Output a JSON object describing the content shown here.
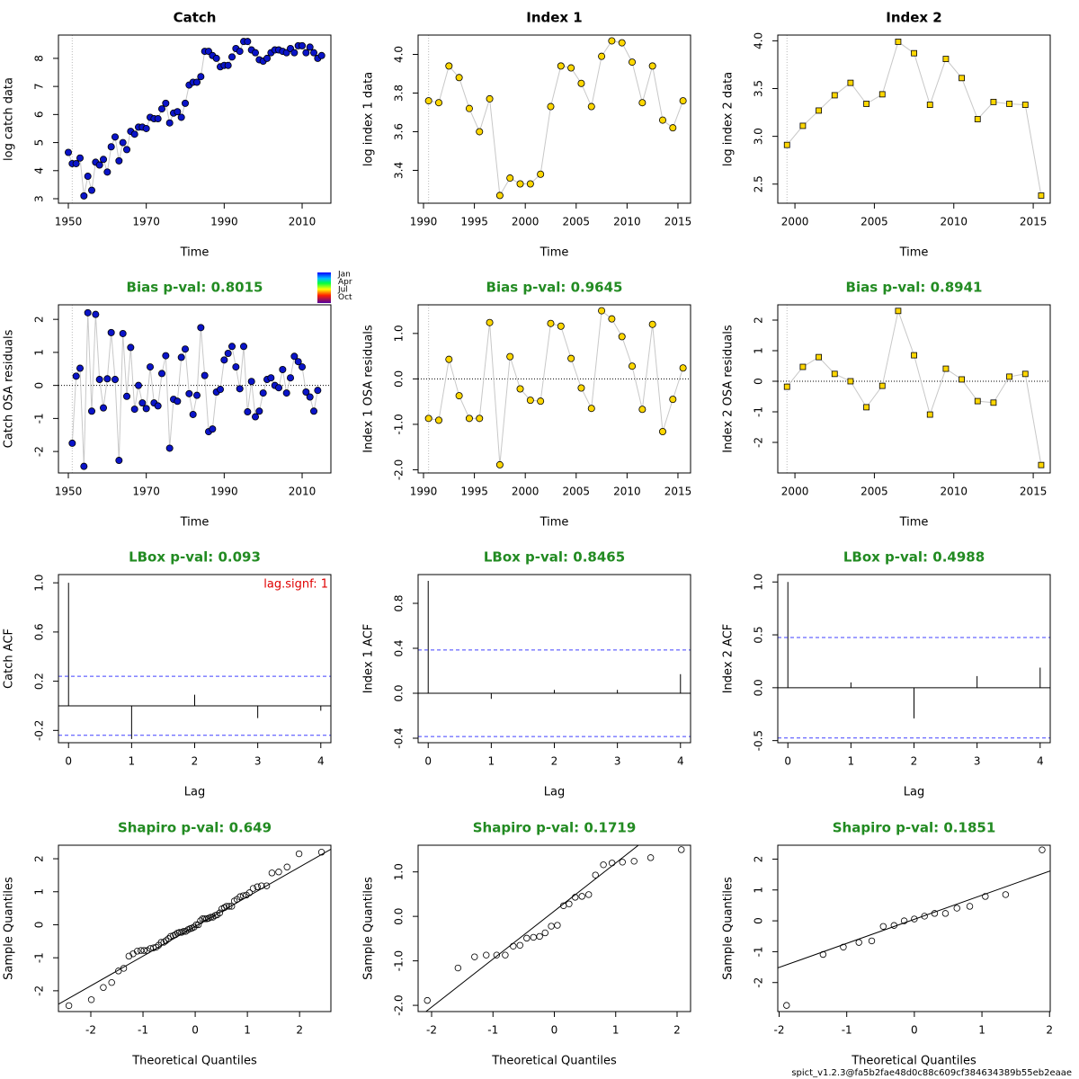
{
  "chart_data": [
    {
      "type": "line",
      "title": "Catch",
      "title_color": "#000000",
      "xlabel": "Time",
      "ylabel": "log catch data",
      "x": [
        1950,
        1951,
        1952,
        1953,
        1954,
        1955,
        1956,
        1957,
        1958,
        1959,
        1960,
        1961,
        1962,
        1963,
        1964,
        1965,
        1966,
        1967,
        1968,
        1969,
        1970,
        1971,
        1972,
        1973,
        1974,
        1975,
        1976,
        1977,
        1978,
        1979,
        1980,
        1981,
        1982,
        1983,
        1984,
        1985,
        1986,
        1987,
        1988,
        1989,
        1990,
        1991,
        1992,
        1993,
        1994,
        1995,
        1996,
        1997,
        1998,
        1999,
        2000,
        2001,
        2002,
        2003,
        2004,
        2005,
        2006,
        2007,
        2008,
        2009,
        2010,
        2011,
        2012,
        2013,
        2014,
        2015
      ],
      "values": [
        4.65,
        4.25,
        4.25,
        4.45,
        3.1,
        3.8,
        3.3,
        4.3,
        4.2,
        4.4,
        3.95,
        4.85,
        5.2,
        4.35,
        5.0,
        4.75,
        5.4,
        5.3,
        5.55,
        5.55,
        5.5,
        5.9,
        5.85,
        5.85,
        6.2,
        6.4,
        5.7,
        6.05,
        6.1,
        5.9,
        6.4,
        7.05,
        7.15,
        7.15,
        7.35,
        8.25,
        8.25,
        8.1,
        8.0,
        7.7,
        7.75,
        7.75,
        8.05,
        8.35,
        8.25,
        8.6,
        8.6,
        8.3,
        8.2,
        7.95,
        7.9,
        8.0,
        8.2,
        8.3,
        8.3,
        8.25,
        8.2,
        8.35,
        8.2,
        8.45,
        8.45,
        8.2,
        8.4,
        8.2,
        8.0,
        8.1
      ],
      "color": "#0a14c8",
      "marker": "circle",
      "vline": 1951,
      "xlim": [
        1947.46,
        2017.38
      ],
      "ylim": [
        2.84,
        8.83
      ],
      "xticks": [
        1950,
        1970,
        1990,
        2010
      ],
      "yticks": [
        3,
        4,
        5,
        6,
        7,
        8
      ]
    },
    {
      "type": "line",
      "title": "Index 1",
      "title_color": "#000000",
      "xlabel": "Time",
      "ylabel": "log index 1 data",
      "x": [
        1990.5,
        1991.5,
        1992.5,
        1993.5,
        1994.5,
        1995.5,
        1996.5,
        1997.5,
        1998.5,
        1999.5,
        2000.5,
        2001.5,
        2002.5,
        2003.5,
        2004.5,
        2005.5,
        2006.5,
        2007.5,
        2008.5,
        2009.5,
        2010.5,
        2011.5,
        2012.5,
        2013.5,
        2014.5,
        2015.5
      ],
      "values": [
        3.76,
        3.75,
        3.94,
        3.88,
        3.72,
        3.6,
        3.77,
        3.27,
        3.36,
        3.33,
        3.33,
        3.38,
        3.73,
        3.94,
        3.93,
        3.85,
        3.73,
        3.99,
        4.07,
        4.06,
        3.96,
        3.75,
        3.94,
        3.66,
        3.62,
        3.76
      ],
      "color": "#ffd700",
      "marker": "circle",
      "vline": 1990.5,
      "xlim": [
        1989.47,
        2016.24
      ],
      "ylim": [
        3.23,
        4.1
      ],
      "xticks": [
        1990,
        1995,
        2000,
        2005,
        2010,
        2015
      ],
      "yticks": [
        3.4,
        3.6,
        3.8,
        {
          "value": 4,
          "label": "4.0"
        }
      ]
    },
    {
      "type": "line",
      "title": "Index 2",
      "title_color": "#000000",
      "xlabel": "Time",
      "ylabel": "log index 2 data",
      "x": [
        1999.5,
        2000.5,
        2001.5,
        2002.5,
        2003.5,
        2004.5,
        2005.5,
        2006.5,
        2007.5,
        2008.5,
        2009.5,
        2010.5,
        2011.5,
        2012.5,
        2013.5,
        2014.5,
        2015.5
      ],
      "values": [
        2.91,
        3.11,
        3.27,
        3.43,
        3.56,
        3.34,
        3.44,
        3.99,
        3.87,
        3.33,
        3.81,
        3.61,
        3.18,
        3.36,
        3.34,
        3.33,
        2.38
      ],
      "color": "#ffd700",
      "marker": "square",
      "vline": 1999.5,
      "xlim": [
        1998.92,
        2016.07
      ],
      "ylim": [
        2.3,
        4.06
      ],
      "xticks": [
        2000,
        2005,
        2010,
        2015
      ],
      "yticks": [
        2.5,
        {
          "value": 3,
          "label": "3.0"
        },
        3.5,
        {
          "value": 4,
          "label": "4.0"
        }
      ]
    },
    {
      "type": "line",
      "title": "Bias p-val: 0.8015",
      "title_color": "#228b22",
      "xlabel": "Time",
      "ylabel": "Catch OSA residuals",
      "x": [
        1951,
        1952,
        1953,
        1954,
        1955,
        1956,
        1957,
        1958,
        1959,
        1960,
        1961,
        1962,
        1963,
        1964,
        1965,
        1966,
        1967,
        1968,
        1969,
        1970,
        1971,
        1972,
        1973,
        1974,
        1975,
        1976,
        1977,
        1978,
        1979,
        1980,
        1981,
        1982,
        1983,
        1984,
        1985,
        1986,
        1987,
        1988,
        1989,
        1990,
        1991,
        1992,
        1993,
        1994,
        1995,
        1996,
        1997,
        1998,
        1999,
        2000,
        2001,
        2002,
        2003,
        2004,
        2005,
        2006,
        2007,
        2008,
        2009,
        2010,
        2011,
        2012,
        2013,
        2014
      ],
      "values": [
        -1.75,
        0.28,
        0.52,
        -2.45,
        2.2,
        -0.78,
        2.15,
        0.18,
        -0.68,
        0.2,
        1.6,
        0.18,
        -2.27,
        1.57,
        -0.33,
        1.15,
        -0.72,
        0,
        -0.53,
        -0.7,
        0.56,
        -0.53,
        -0.62,
        0.36,
        0.9,
        -1.9,
        -0.42,
        -0.48,
        0.85,
        1.1,
        -0.25,
        -0.88,
        -0.3,
        1.75,
        0.3,
        -1.4,
        -1.32,
        -0.2,
        -0.12,
        0.77,
        0.97,
        1.18,
        0.56,
        -0.1,
        1.18,
        -0.8,
        0.12,
        -0.95,
        -0.78,
        -0.23,
        0.18,
        0.23,
        0,
        -0.07,
        0.48,
        -0.23,
        0.23,
        0.88,
        0.72,
        0.56,
        -0.2,
        -0.35,
        -0.78,
        -0.15
      ],
      "color": "#0a14c8",
      "marker": "circle",
      "vline": 1951,
      "hline": 0,
      "season_labels": [
        "Jan",
        "Apr",
        "Jul",
        "Oct"
      ],
      "xlim": [
        1947.46,
        2017.38
      ],
      "ylim": [
        -2.65,
        2.44
      ],
      "xticks": [
        1950,
        1970,
        1990,
        2010
      ],
      "yticks": [
        -2,
        -1,
        0,
        1,
        2
      ]
    },
    {
      "type": "line",
      "title": "Bias p-val: 0.9645",
      "title_color": "#228b22",
      "xlabel": "Time",
      "ylabel": "Index 1 OSA residuals",
      "x": [
        1990.5,
        1991.5,
        1992.5,
        1993.5,
        1994.5,
        1995.5,
        1996.5,
        1997.5,
        1998.5,
        1999.5,
        2000.5,
        2001.5,
        2002.5,
        2003.5,
        2004.5,
        2005.5,
        2006.5,
        2007.5,
        2008.5,
        2009.5,
        2010.5,
        2011.5,
        2012.5,
        2013.5,
        2014.5,
        2015.5
      ],
      "values": [
        -0.87,
        -0.91,
        0.43,
        -0.37,
        -0.87,
        -0.87,
        1.24,
        -1.89,
        0.49,
        -0.22,
        -0.47,
        -0.49,
        1.22,
        1.16,
        0.45,
        -0.2,
        -0.65,
        1.5,
        1.32,
        0.93,
        0.28,
        -0.67,
        1.2,
        -1.16,
        -0.45,
        0.24
      ],
      "color": "#ffd700",
      "marker": "circle",
      "vline": 1990.5,
      "hline": 0,
      "xlim": [
        1989.47,
        2016.24
      ],
      "ylim": [
        -2.07,
        1.63
      ],
      "xticks": [
        1990,
        1995,
        2000,
        2005,
        2010,
        2015
      ],
      "yticks": [
        {
          "value": -2,
          "label": "-2.0"
        },
        {
          "value": -1,
          "label": "-1.0"
        },
        {
          "value": 0,
          "label": "0.0"
        },
        {
          "value": 1,
          "label": "1.0"
        }
      ]
    },
    {
      "type": "line",
      "title": "Bias p-val: 0.8941",
      "title_color": "#228b22",
      "xlabel": "Time",
      "ylabel": "Index 2 OSA residuals",
      "x": [
        1999.5,
        2000.5,
        2001.5,
        2002.5,
        2003.5,
        2004.5,
        2005.5,
        2006.5,
        2007.5,
        2008.5,
        2009.5,
        2010.5,
        2011.5,
        2012.5,
        2013.5,
        2014.5,
        2015.5
      ],
      "values": [
        -0.18,
        0.47,
        0.79,
        0.24,
        0,
        -0.85,
        -0.15,
        2.3,
        0.85,
        -1.09,
        0.41,
        0.06,
        -0.65,
        -0.7,
        0.15,
        0.24,
        -2.74
      ],
      "color": "#ffd700",
      "marker": "square",
      "vline": 1999.5,
      "hline": 0,
      "xlim": [
        1998.92,
        2016.07
      ],
      "ylim": [
        -3.0,
        2.5
      ],
      "xticks": [
        2000,
        2005,
        2010,
        2015
      ],
      "yticks": [
        -2,
        -1,
        0,
        1,
        2
      ]
    },
    {
      "type": "bar",
      "title": "LBox p-val: 0.093",
      "title_color": "#228b22",
      "xlabel": "Lag",
      "ylabel": "Catch ACF",
      "annotation": "lag.signf: 1",
      "annotation_color": "#e00000",
      "x": [
        0,
        1,
        2,
        3,
        4
      ],
      "values": [
        1,
        -0.27,
        0.09,
        -0.1,
        -0.04
      ],
      "hline": 0,
      "conf": [
        -0.24,
        0.24
      ],
      "conf_color": "#4040ff",
      "xlim": [
        -0.16,
        4.16
      ],
      "ylim": [
        -0.3,
        1.067
      ],
      "xticks": [
        0,
        1,
        2,
        3,
        4
      ],
      "yticks": [
        -0.2,
        0.2,
        0.6,
        {
          "value": 1,
          "label": "1.0"
        }
      ]
    },
    {
      "type": "bar",
      "title": "LBox p-val: 0.8465",
      "title_color": "#228b22",
      "xlabel": "Lag",
      "ylabel": "Index 1 ACF",
      "x": [
        0,
        1,
        2,
        3,
        4
      ],
      "values": [
        1,
        -0.05,
        0.03,
        0.03,
        0.17
      ],
      "hline": 0,
      "conf": [
        -0.385,
        0.385
      ],
      "conf_color": "#4040ff",
      "xlim": [
        -0.16,
        4.16
      ],
      "ylim": [
        -0.44,
        1.056
      ],
      "xticks": [
        0,
        1,
        2,
        3,
        4
      ],
      "yticks": [
        -0.4,
        {
          "value": 0,
          "label": "0.0"
        },
        0.4,
        0.8
      ]
    },
    {
      "type": "bar",
      "title": "LBox p-val: 0.4988",
      "title_color": "#228b22",
      "xlabel": "Lag",
      "ylabel": "Index 2 ACF",
      "x": [
        0,
        1,
        2,
        3,
        4
      ],
      "values": [
        1,
        0.05,
        -0.29,
        0.11,
        0.19
      ],
      "hline": 0,
      "conf": [
        -0.475,
        0.475
      ],
      "conf_color": "#4040ff",
      "xlim": [
        -0.16,
        4.16
      ],
      "ylim": [
        -0.52,
        1.07
      ],
      "xticks": [
        0,
        1,
        2,
        3,
        4
      ],
      "yticks": [
        -0.5,
        {
          "value": 0,
          "label": "0.0"
        },
        0.5,
        {
          "value": 1,
          "label": "1.0"
        }
      ]
    },
    {
      "type": "scatter",
      "title": "Shapiro p-val: 0.649",
      "title_color": "#228b22",
      "xlabel": "Theoretical Quantiles",
      "ylabel": "Sample Quantiles",
      "x": [
        -2.42,
        -1.99,
        -1.76,
        -1.6,
        -1.47,
        -1.37,
        -1.27,
        -1.19,
        -1.11,
        -1.04,
        -0.98,
        -0.92,
        -0.86,
        -0.8,
        -0.75,
        -0.7,
        -0.65,
        -0.6,
        -0.56,
        -0.51,
        -0.47,
        -0.42,
        -0.38,
        -0.34,
        -0.3,
        -0.26,
        -0.22,
        -0.18,
        -0.14,
        -0.1,
        -0.06,
        -0.02,
        0.02,
        0.06,
        0.1,
        0.14,
        0.18,
        0.22,
        0.26,
        0.3,
        0.34,
        0.38,
        0.42,
        0.47,
        0.51,
        0.56,
        0.6,
        0.65,
        0.7,
        0.75,
        0.8,
        0.86,
        0.92,
        0.98,
        1.04,
        1.11,
        1.19,
        1.27,
        1.37,
        1.47,
        1.6,
        1.76,
        1.99,
        2.42
      ],
      "values": [
        -2.45,
        -2.27,
        -1.9,
        -1.75,
        -1.4,
        -1.32,
        -0.95,
        -0.88,
        -0.8,
        -0.78,
        -0.78,
        -0.78,
        -0.72,
        -0.7,
        -0.68,
        -0.62,
        -0.53,
        -0.53,
        -0.48,
        -0.42,
        -0.35,
        -0.33,
        -0.3,
        -0.25,
        -0.23,
        -0.23,
        -0.2,
        -0.2,
        -0.15,
        -0.12,
        -0.1,
        -0.07,
        0,
        0,
        0.12,
        0.18,
        0.18,
        0.18,
        0.2,
        0.23,
        0.23,
        0.28,
        0.3,
        0.36,
        0.48,
        0.52,
        0.56,
        0.56,
        0.56,
        0.72,
        0.77,
        0.85,
        0.88,
        0.9,
        0.97,
        1.1,
        1.15,
        1.18,
        1.18,
        1.57,
        1.6,
        1.75,
        2.15,
        2.2
      ],
      "color": "#000000",
      "qqline": {
        "intercept": -0.05,
        "slope": 0.9
      },
      "xlim": [
        -2.62,
        2.6
      ],
      "ylim": [
        -2.63,
        2.41
      ],
      "xticks": [
        -2,
        -1,
        0,
        1,
        2
      ],
      "yticks": [
        -2,
        -1,
        0,
        1,
        2
      ]
    },
    {
      "type": "scatter",
      "title": "Shapiro p-val: 0.1719",
      "title_color": "#228b22",
      "xlabel": "Theoretical Quantiles",
      "ylabel": "Sample Quantiles",
      "x": [
        -2.07,
        -1.57,
        -1.3,
        -1.11,
        -0.94,
        -0.8,
        -0.67,
        -0.56,
        -0.45,
        -0.34,
        -0.24,
        -0.15,
        -0.05,
        0.05,
        0.15,
        0.24,
        0.34,
        0.45,
        0.56,
        0.67,
        0.8,
        0.94,
        1.11,
        1.3,
        1.57,
        2.07
      ],
      "values": [
        -1.89,
        -1.16,
        -0.91,
        -0.87,
        -0.87,
        -0.87,
        -0.67,
        -0.65,
        -0.49,
        -0.47,
        -0.45,
        -0.37,
        -0.22,
        -0.2,
        0.24,
        0.28,
        0.43,
        0.45,
        0.49,
        0.93,
        1.16,
        1.2,
        1.22,
        1.24,
        1.32,
        1.5
      ],
      "color": "#000000",
      "qqline": {
        "intercept": 0.12,
        "slope": 1.08
      },
      "xlim": [
        -2.22,
        2.22
      ],
      "ylim": [
        -2.14,
        1.6
      ],
      "xticks": [
        -2,
        -1,
        0,
        1,
        2
      ],
      "yticks": [
        {
          "value": -2,
          "label": "-2.0"
        },
        {
          "value": -1,
          "label": "-1.0"
        },
        {
          "value": 0,
          "label": "0.0"
        },
        {
          "value": 1,
          "label": "1.0"
        }
      ]
    },
    {
      "type": "scatter",
      "title": "Shapiro p-val: 0.1851",
      "title_color": "#228b22",
      "xlabel": "Theoretical Quantiles",
      "ylabel": "Sample Quantiles",
      "x": [
        -1.89,
        -1.35,
        -1.05,
        -0.82,
        -0.63,
        -0.46,
        -0.3,
        -0.15,
        0,
        0.15,
        0.3,
        0.46,
        0.63,
        0.82,
        1.05,
        1.35,
        1.89
      ],
      "values": [
        -2.74,
        -1.09,
        -0.85,
        -0.7,
        -0.65,
        -0.18,
        -0.15,
        0,
        0.06,
        0.15,
        0.24,
        0.24,
        0.41,
        0.47,
        0.79,
        0.85,
        2.3
      ],
      "color": "#000000",
      "qqline": {
        "intercept": 0.05,
        "slope": 0.78
      },
      "xlim": [
        -2.02,
        2.01
      ],
      "ylim": [
        -2.94,
        2.45
      ],
      "xticks": [
        -2,
        -1,
        0,
        1,
        2
      ],
      "yticks": [
        -2,
        -1,
        0,
        1,
        2
      ]
    }
  ],
  "footer": "spict_v1.2.3@fa5b2fae48d0c88c609cf384634389b55eb2eaae"
}
